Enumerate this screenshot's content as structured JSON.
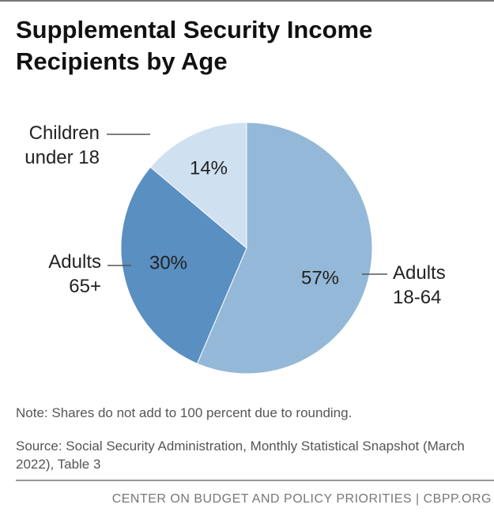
{
  "chart_data": {
    "type": "pie",
    "title": "Supplemental Security Income Recipients by Age",
    "categories": [
      "Adults 18-64",
      "Adults 65+",
      "Children under 18"
    ],
    "values": [
      57,
      30,
      14
    ],
    "value_labels": [
      "57%",
      "30%",
      "14%"
    ],
    "colors": [
      "#94b8d7",
      "#5a8fc1",
      "#cfe0f0"
    ],
    "note": "Note: Shares do not add to 100 percent due to rounding.",
    "source": "Source: Social Security Administration, Monthly Statistical Snapshot (March 2022), Table 3"
  },
  "footer": "CENTER ON BUDGET AND POLICY PRIORITIES | CBPP.ORG"
}
